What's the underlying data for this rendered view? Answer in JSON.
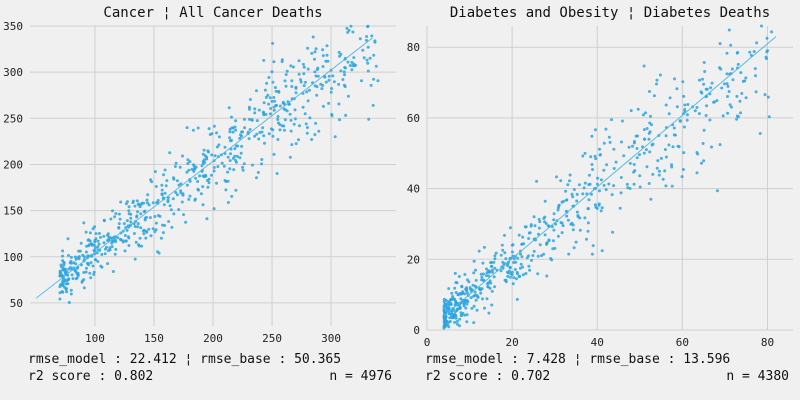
{
  "colors": {
    "background": "#f0f0f0",
    "point": "#2aa4e0",
    "fit_line": "#4db6e8",
    "grid": "#cfcfcf"
  },
  "chart_data": [
    {
      "type": "scatter",
      "title": "Cancer ¦ All Cancer Deaths",
      "xlabel": "",
      "ylabel": "",
      "xlim": [
        45,
        355
      ],
      "ylim": [
        25,
        350
      ],
      "xticks": [
        100,
        150,
        200,
        250,
        300
      ],
      "yticks": [
        50,
        100,
        150,
        200,
        250,
        300,
        350
      ],
      "grid": true,
      "fit_line": {
        "x": [
          50,
          335
        ],
        "y": [
          55,
          337
        ]
      },
      "n_points": 700,
      "point_seed": 17,
      "footer": {
        "line1": "rmse_model : 22.412 ¦ rmse_base : 50.365",
        "line2": "r2 score : 0.802",
        "count": "n = 4976"
      }
    },
    {
      "type": "scatter",
      "title": "Diabetes and Obesity ¦ Diabetes Deaths",
      "xlabel": "",
      "ylabel": "",
      "xlim": [
        0,
        86
      ],
      "ylim": [
        0,
        86
      ],
      "xticks": [
        0,
        20,
        40,
        60,
        80
      ],
      "yticks": [
        0,
        20,
        40,
        60,
        80
      ],
      "grid": true,
      "fit_line": {
        "x": [
          4,
          82
        ],
        "y": [
          4,
          83
        ]
      },
      "n_points": 650,
      "point_seed": 29,
      "footer": {
        "line1": "rmse_model : 7.428 ¦ rmse_base : 13.596",
        "line2": "r2 score : 0.702",
        "count": "n = 4380"
      }
    }
  ]
}
